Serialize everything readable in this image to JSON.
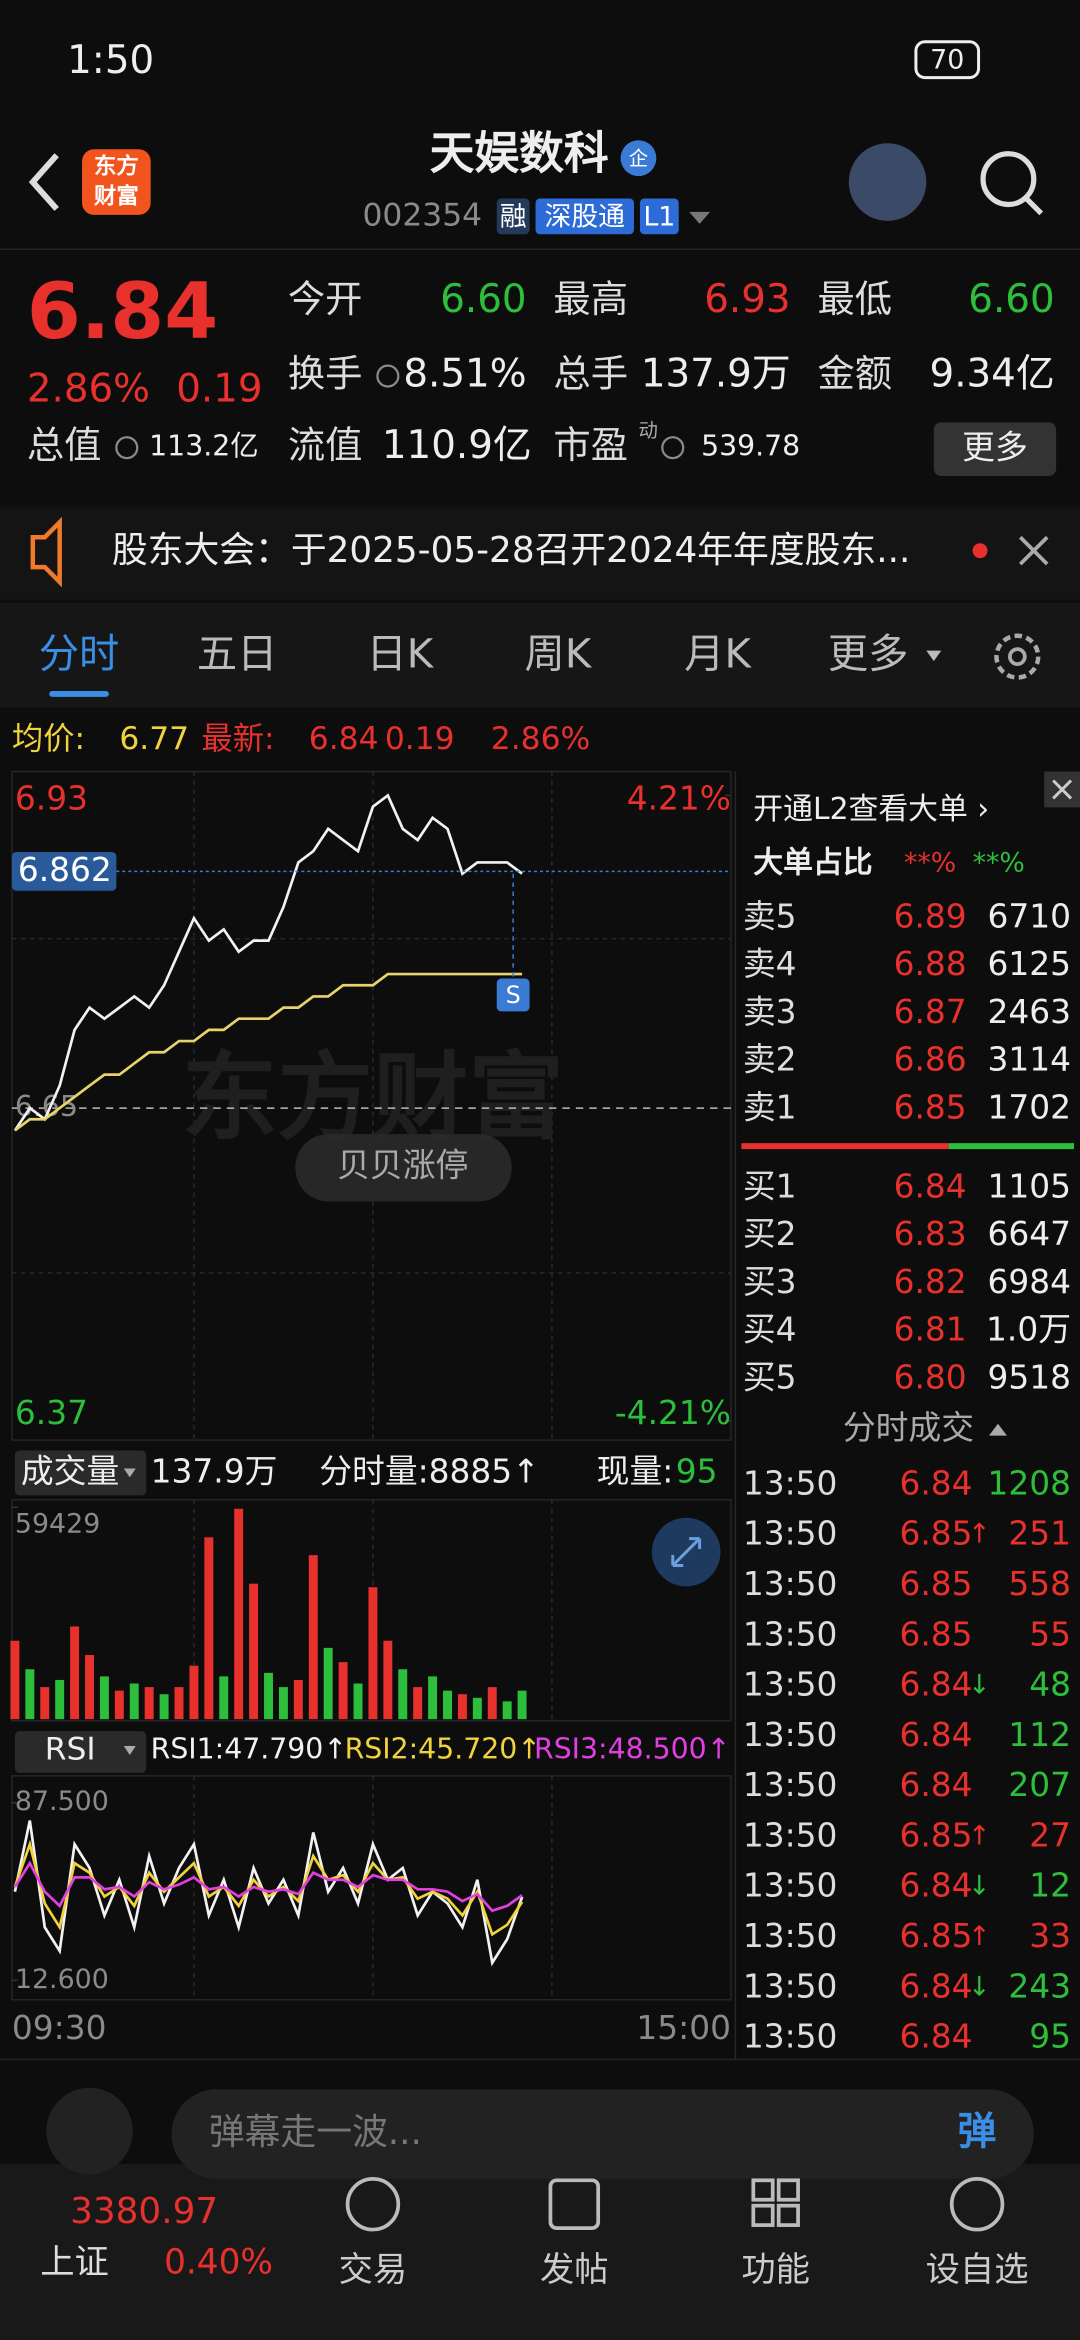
{
  "status_bar": {
    "time": "1:50",
    "battery": "70"
  },
  "header": {
    "logo": [
      "东方",
      "财富"
    ],
    "title": "天娱数科",
    "badge": "企",
    "code": "002354",
    "tags": [
      "融",
      "深股通",
      "L1"
    ]
  },
  "quote": {
    "price": "6.84",
    "change_pct": "2.86%",
    "change": "0.19",
    "more": "更多",
    "fields": [
      {
        "label": "今开",
        "value": "6.60",
        "color": "#2dbe3c"
      },
      {
        "label": "最高",
        "value": "6.93",
        "color": "#e8302d"
      },
      {
        "label": "最低",
        "value": "6.60",
        "color": "#2dbe3c"
      },
      {
        "label": "换手",
        "value": "8.51%",
        "color": "#eeeeee"
      },
      {
        "label": "总手",
        "value": "137.9万",
        "color": "#eeeeee"
      },
      {
        "label": "金额",
        "value": "9.34亿",
        "color": "#eeeeee"
      },
      {
        "label": "总值",
        "value": "113.2亿",
        "color": "#eeeeee"
      },
      {
        "label": "流值",
        "value": "110.9亿",
        "color": "#eeeeee"
      },
      {
        "label": "市盈",
        "sup": "动",
        "value": "539.78",
        "color": "#eeeeee"
      }
    ]
  },
  "notice": "股东大会：于2025-05-28召开2024年年度股东...",
  "tabs": [
    "分时",
    "五日",
    "日K",
    "周K",
    "月K",
    "更多"
  ],
  "summary": {
    "avg_label": "均价:",
    "avg": "6.77",
    "last_label": "最新:",
    "last": "6.84",
    "change": "0.19",
    "change_pct": "2.86%"
  },
  "chart_data": [
    {
      "type": "line",
      "ylim": [
        6.37,
        6.93
      ],
      "yticks": [
        6.37,
        6.65,
        6.93
      ],
      "y2lim": [
        -4.21,
        4.21
      ],
      "y2ticks": [
        {
          "value": -4.21,
          "label": "-4.21%"
        },
        {
          "value": 4.21,
          "label": "4.21%"
        }
      ],
      "crosshair": 6.862,
      "watermark": "东方财富",
      "button": "贝贝涨停",
      "marker": "S",
      "series": [
        {
          "color": "#f2f2f2",
          "values": [
            6.63,
            6.65,
            6.64,
            6.67,
            6.72,
            6.74,
            6.73,
            6.74,
            6.75,
            6.74,
            6.76,
            6.79,
            6.82,
            6.8,
            6.81,
            6.79,
            6.8,
            6.8,
            6.83,
            6.87,
            6.88,
            6.9,
            6.89,
            6.88,
            6.92,
            6.93,
            6.9,
            6.89,
            6.91,
            6.9,
            6.86,
            6.87,
            6.87,
            6.87,
            6.86
          ]
        },
        {
          "color": "#e8d36a",
          "values": [
            6.63,
            6.64,
            6.64,
            6.65,
            6.66,
            6.67,
            6.68,
            6.68,
            6.69,
            6.7,
            6.7,
            6.71,
            6.71,
            6.72,
            6.72,
            6.73,
            6.73,
            6.73,
            6.74,
            6.74,
            6.75,
            6.75,
            6.76,
            6.76,
            6.76,
            6.77,
            6.77,
            6.77,
            6.77,
            6.77,
            6.77,
            6.77,
            6.77,
            6.77,
            6.77
          ]
        }
      ]
    },
    {
      "type": "bar",
      "title": "成交量",
      "total": "137.9万",
      "period_volume": "分时量:8885↑",
      "current_label": "现量:",
      "current": "95",
      "ylim": [
        0,
        59429
      ],
      "yticks": [
        59429
      ],
      "values": [
        22000,
        14000,
        9000,
        11000,
        26000,
        18000,
        12000,
        8000,
        10000,
        9000,
        7000,
        9000,
        15000,
        51000,
        12000,
        59000,
        38000,
        13000,
        9000,
        11000,
        46000,
        20000,
        16000,
        10000,
        37000,
        22000,
        14000,
        9000,
        12000,
        8000,
        7000,
        6000,
        9000,
        5000,
        8000
      ],
      "colors": [
        "#e8302d",
        "#2dbe3c",
        "#e8302d",
        "#2dbe3c",
        "#e8302d",
        "#e8302d",
        "#2dbe3c",
        "#e8302d",
        "#2dbe3c",
        "#e8302d",
        "#2dbe3c",
        "#e8302d",
        "#e8302d",
        "#e8302d",
        "#2dbe3c",
        "#e8302d",
        "#e8302d",
        "#2dbe3c",
        "#2dbe3c",
        "#e8302d",
        "#e8302d",
        "#2dbe3c",
        "#e8302d",
        "#2dbe3c",
        "#e8302d",
        "#e8302d",
        "#2dbe3c",
        "#e8302d",
        "#2dbe3c",
        "#2dbe3c",
        "#e8302d",
        "#2dbe3c",
        "#e8302d",
        "#2dbe3c",
        "#2dbe3c"
      ]
    },
    {
      "type": "line",
      "title": "RSI",
      "ylim": [
        12.6,
        87.5
      ],
      "yticks": [
        {
          "value": 12.6,
          "label": "12.600"
        },
        {
          "value": 87.5,
          "label": "87.500"
        }
      ],
      "xticks": [
        "09:30",
        "15:00"
      ],
      "series": [
        {
          "name": "RSI1:47.790↑",
          "color": "#f2f2f2",
          "values": [
            50,
            80,
            35,
            25,
            70,
            60,
            40,
            55,
            35,
            65,
            45,
            60,
            70,
            40,
            55,
            35,
            60,
            45,
            55,
            40,
            75,
            50,
            60,
            45,
            70,
            55,
            60,
            40,
            50,
            45,
            35,
            55,
            20,
            30,
            47.79
          ]
        },
        {
          "name": "RSI2:45.720↑",
          "color": "#f0d23c",
          "values": [
            52,
            70,
            45,
            35,
            62,
            58,
            48,
            52,
            44,
            58,
            50,
            56,
            62,
            48,
            52,
            44,
            55,
            48,
            52,
            46,
            65,
            55,
            57,
            50,
            62,
            55,
            56,
            47,
            50,
            47,
            40,
            50,
            32,
            36,
            45.72
          ]
        },
        {
          "name": "RSI3:48.500↑",
          "color": "#e040e0",
          "values": [
            52,
            62,
            50,
            44,
            56,
            56,
            51,
            52,
            48,
            54,
            51,
            53,
            56,
            51,
            52,
            48,
            52,
            50,
            51,
            49,
            58,
            55,
            55,
            52,
            57,
            55,
            55,
            51,
            51,
            50,
            46,
            49,
            42,
            44,
            48.5
          ]
        }
      ]
    }
  ],
  "order_book": {
    "l2": "开通L2查看大单 ›",
    "ratio_label": "大单占比",
    "ratio_sell": "**%",
    "ratio_buy": "**%",
    "sells": [
      [
        "卖5",
        "6.89",
        "6710"
      ],
      [
        "卖4",
        "6.88",
        "6125"
      ],
      [
        "卖3",
        "6.87",
        "2463"
      ],
      [
        "卖2",
        "6.86",
        "3114"
      ],
      [
        "卖1",
        "6.85",
        "1702"
      ]
    ],
    "buys": [
      [
        "买1",
        "6.84",
        "1105"
      ],
      [
        "买2",
        "6.83",
        "6647"
      ],
      [
        "买3",
        "6.82",
        "6984"
      ],
      [
        "买4",
        "6.81",
        "1.0万"
      ],
      [
        "买5",
        "6.80",
        "9518"
      ]
    ]
  },
  "trades": {
    "title": "分时成交",
    "rows": [
      {
        "time": "13:50",
        "price": "6.84",
        "volume": "1208",
        "color": "#2dbe3c"
      },
      {
        "time": "13:50",
        "price": "6.85",
        "arrow": "↑",
        "volume": "251",
        "color": "#e8302d"
      },
      {
        "time": "13:50",
        "price": "6.85",
        "volume": "558",
        "color": "#e8302d"
      },
      {
        "time": "13:50",
        "price": "6.85",
        "volume": "55",
        "color": "#e8302d"
      },
      {
        "time": "13:50",
        "price": "6.84",
        "arrow": "↓",
        "volume": "48",
        "color": "#2dbe3c"
      },
      {
        "time": "13:50",
        "price": "6.84",
        "volume": "112",
        "color": "#2dbe3c"
      },
      {
        "time": "13:50",
        "price": "6.84",
        "volume": "207",
        "color": "#2dbe3c"
      },
      {
        "time": "13:50",
        "price": "6.85",
        "arrow": "↑",
        "volume": "27",
        "color": "#e8302d"
      },
      {
        "time": "13:50",
        "price": "6.84",
        "arrow": "↓",
        "volume": "12",
        "color": "#2dbe3c"
      },
      {
        "time": "13:50",
        "price": "6.85",
        "arrow": "↑",
        "volume": "33",
        "color": "#e8302d"
      },
      {
        "time": "13:50",
        "price": "6.84",
        "arrow": "↓",
        "volume": "243",
        "color": "#2dbe3c"
      },
      {
        "time": "13:50",
        "price": "6.84",
        "volume": "95",
        "color": "#2dbe3c"
      }
    ]
  },
  "comment": {
    "placeholder": "弹幕走一波...",
    "danmu": "弹"
  },
  "index": {
    "name": "上证",
    "value": "3380.97",
    "change": "0.40%"
  },
  "nav": [
    "交易",
    "发帖",
    "功能",
    "设自选"
  ]
}
